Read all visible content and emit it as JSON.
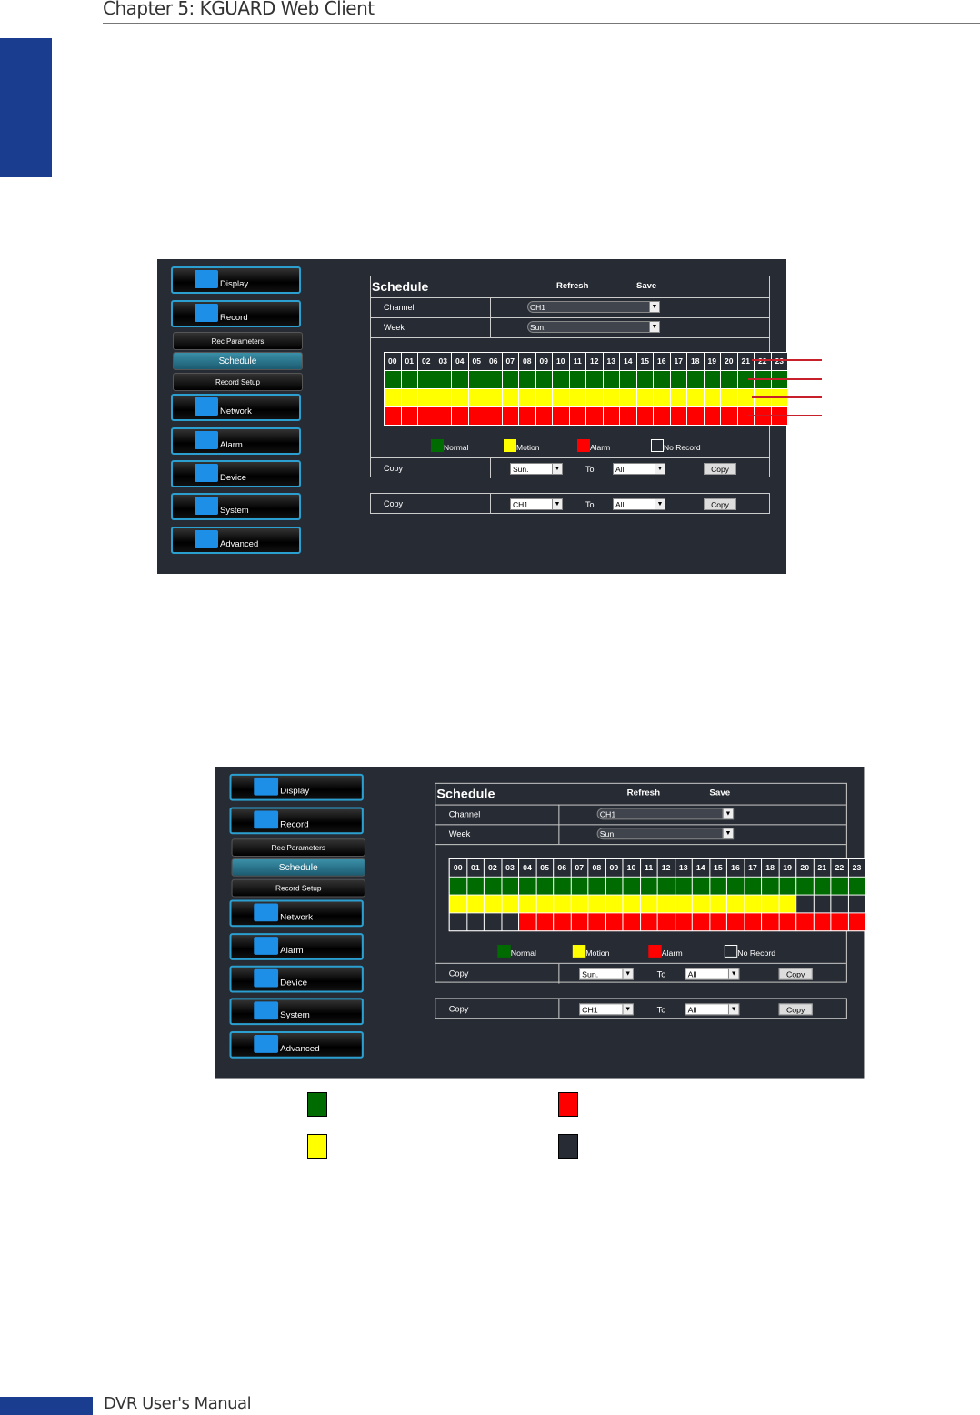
{
  "page": {
    "header": "Chapter 5: KGUARD Web Client",
    "footer": "DVR User's Manual"
  },
  "colors": {
    "normal": "#006b00",
    "motion": "#ffff00",
    "alarm": "#ff0000",
    "none": "#272b33",
    "accent": "#1b3d8f"
  },
  "menu": {
    "items": [
      "Display",
      "Record",
      "Network",
      "Alarm",
      "Device",
      "System",
      "Advanced"
    ],
    "sub": [
      "Rec Parameters",
      "Schedule",
      "Record Setup"
    ]
  },
  "schedule": {
    "title": "Schedule",
    "refresh": "Refresh",
    "save": "Save",
    "channel_label": "Channel",
    "channel": "CH1",
    "week_label": "Week",
    "week": "Sun.",
    "copy_label": "Copy",
    "to_label": "To",
    "copy_from_day": "Sun.",
    "copy_to": "All",
    "copy_btn": "Copy",
    "copy_from_ch": "CH1",
    "hours": [
      "00",
      "01",
      "02",
      "03",
      "04",
      "05",
      "06",
      "07",
      "08",
      "09",
      "10",
      "11",
      "12",
      "13",
      "14",
      "15",
      "16",
      "17",
      "18",
      "19",
      "20",
      "21",
      "22",
      "23"
    ],
    "legend": [
      "Normal",
      "Motion",
      "Alarm",
      "No Record"
    ]
  },
  "screenshots": [
    {
      "rows": {
        "normal": [
          0,
          23
        ],
        "motion": [
          0,
          23
        ],
        "alarm": [
          0,
          23
        ]
      }
    },
    {
      "rows": {
        "normal": [
          0,
          23
        ],
        "motion": [
          0,
          19
        ],
        "alarm": [
          4,
          23
        ]
      }
    }
  ],
  "legend_squares": [
    "normal",
    "alarm",
    "motion",
    "none"
  ]
}
